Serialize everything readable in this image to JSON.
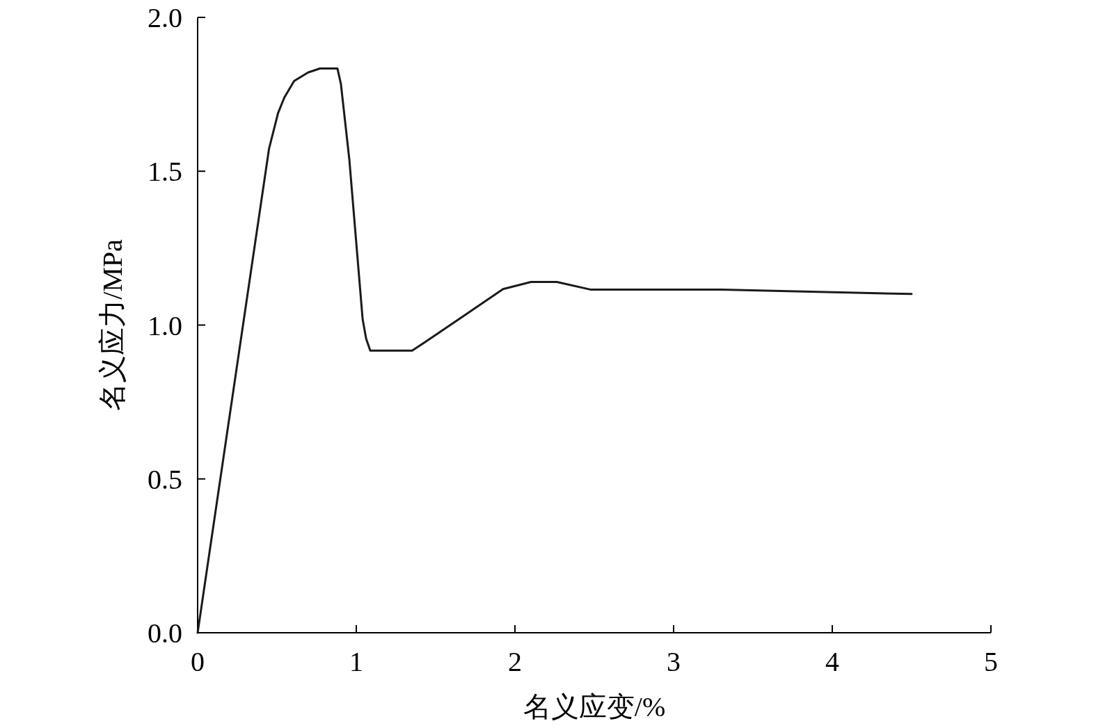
{
  "chart_data": {
    "type": "line",
    "xlabel": "名义应变/%",
    "ylabel": "名义应力/MPa",
    "x": [
      0,
      0.45,
      0.507,
      0.546,
      0.608,
      0.696,
      0.771,
      0.881,
      0.903,
      0.956,
      1.04,
      1.062,
      1.088,
      1.352,
      1.432,
      1.692,
      1.925,
      2.101,
      2.264,
      2.48,
      3.3,
      4.5
    ],
    "series": [
      {
        "color": "#1a1a1a",
        "values": [
          0,
          1.573,
          1.689,
          1.739,
          1.793,
          1.821,
          1.834,
          1.834,
          1.784,
          1.539,
          1.019,
          0.956,
          0.917,
          0.917,
          0.944,
          1.035,
          1.117,
          1.14,
          1.14,
          1.115,
          1.115,
          1.101
        ]
      }
    ],
    "xlim": [
      0,
      5
    ],
    "ylim": [
      0,
      2
    ],
    "xticks": [
      0,
      1,
      2,
      3,
      4,
      5
    ],
    "yticks": [
      {
        "value": 0,
        "label": "0.0"
      },
      {
        "value": 0.5,
        "label": "0.5"
      },
      {
        "value": 1,
        "label": "1.0"
      },
      {
        "value": 1.5,
        "label": "1.5"
      },
      {
        "value": 2,
        "label": "2.0"
      }
    ]
  }
}
